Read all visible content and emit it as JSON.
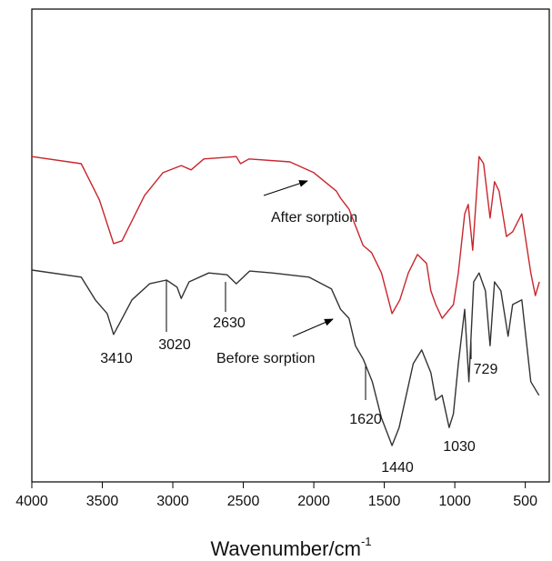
{
  "chart_data": {
    "type": "line",
    "x_label": "Wavenumber/cm",
    "x_label_sup": "-1",
    "xlim": [
      4000,
      330
    ],
    "xticks": [
      4000,
      3500,
      3000,
      2500,
      2000,
      1500,
      1000,
      500
    ],
    "ylim": [
      0,
      100
    ],
    "annotations": [
      "3410",
      "3020",
      "2630",
      "1620",
      "1440",
      "1030",
      "729"
    ],
    "series": [
      {
        "name": "After sorption",
        "color": "#c8262c",
        "x": [
          4000,
          3650,
          3520,
          3420,
          3360,
          3200,
          3070,
          2940,
          2870,
          2780,
          2550,
          2520,
          2460,
          2170,
          2000,
          1840,
          1810,
          1750,
          1650,
          1590,
          1520,
          1445,
          1390,
          1330,
          1265,
          1200,
          1170,
          1135,
          1090,
          1010,
          975,
          930,
          905,
          873,
          828,
          796,
          750,
          718,
          686,
          634,
          590,
          525,
          461,
          429,
          400
        ],
        "values": [
          68.8,
          67.3,
          59.6,
          50.4,
          51.0,
          60.6,
          65.4,
          66.9,
          66.0,
          68.3,
          68.8,
          67.3,
          68.3,
          67.7,
          65.4,
          61.5,
          60.0,
          57.7,
          50.0,
          48.5,
          44.2,
          35.6,
          38.5,
          44.2,
          48.1,
          46.2,
          40.4,
          37.5,
          34.6,
          37.5,
          44.2,
          56.7,
          58.7,
          49.0,
          68.8,
          67.3,
          55.8,
          63.5,
          61.5,
          51.9,
          52.9,
          56.7,
          44.2,
          39.4,
          42.3
        ]
      },
      {
        "name": "Before sorption",
        "color": "#333333",
        "x": [
          4000,
          3650,
          3550,
          3465,
          3420,
          3375,
          3290,
          3165,
          3045,
          2970,
          2940,
          2885,
          2745,
          2615,
          2550,
          2455,
          2295,
          2035,
          1875,
          1810,
          1750,
          1705,
          1650,
          1585,
          1520,
          1445,
          1395,
          1295,
          1235,
          1170,
          1135,
          1090,
          1040,
          1010,
          975,
          930,
          900,
          866,
          828,
          783,
          750,
          718,
          673,
          622,
          590,
          525,
          461,
          403
        ],
        "values": [
          44.8,
          43.3,
          38.5,
          35.6,
          31.2,
          33.7,
          38.5,
          41.9,
          42.7,
          41.2,
          38.8,
          42.3,
          44.2,
          43.8,
          41.9,
          44.6,
          44.2,
          43.3,
          40.8,
          36.5,
          34.6,
          28.8,
          26.0,
          21.2,
          13.5,
          7.7,
          11.5,
          25.0,
          27.9,
          23.1,
          17.3,
          18.3,
          11.5,
          14.4,
          25.0,
          36.5,
          21.2,
          42.3,
          44.2,
          40.4,
          28.8,
          42.3,
          40.4,
          30.8,
          37.5,
          38.5,
          21.2,
          18.3
        ]
      }
    ]
  }
}
